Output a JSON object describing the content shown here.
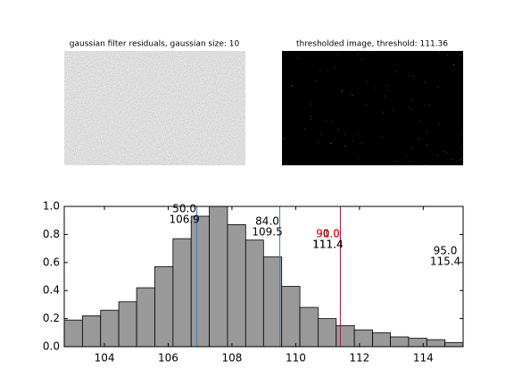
{
  "images": [
    {
      "title": "gaussian filter residuals, gaussian size: 10"
    },
    {
      "title": "thresholded image, threshold: 111.36"
    }
  ],
  "chart_data": {
    "type": "histogram",
    "bins": [
      102.74,
      103.31,
      103.88,
      104.45,
      105.01,
      105.58,
      106.15,
      106.72,
      107.29,
      107.86,
      108.43,
      108.99,
      109.56,
      110.13,
      110.7,
      111.27,
      111.84,
      112.41,
      112.97,
      113.54,
      114.11,
      114.68,
      115.25
    ],
    "values": [
      0.19,
      0.22,
      0.26,
      0.32,
      0.42,
      0.57,
      0.77,
      0.93,
      1.0,
      0.87,
      0.76,
      0.64,
      0.43,
      0.28,
      0.2,
      0.15,
      0.12,
      0.1,
      0.07,
      0.06,
      0.05,
      0.03
    ],
    "color": "#999999",
    "xlim": [
      102.74,
      115.25
    ],
    "xticks": [
      104,
      106,
      108,
      110,
      112,
      114
    ],
    "ylim": [
      0,
      1
    ],
    "yticks": [
      {
        "value": 0,
        "label": "0.0"
      },
      {
        "value": 0.2,
        "label": "0.2"
      },
      {
        "value": 0.4,
        "label": "0.4"
      },
      {
        "value": 0.6,
        "label": "0.6"
      },
      {
        "value": 0.8,
        "label": "0.8"
      },
      {
        "value": 1,
        "label": "1.0"
      }
    ],
    "markers": [
      {
        "percentile": "50.0",
        "value": 106.9,
        "line_color": "#3a7fc0",
        "text_color": "#000000"
      },
      {
        "percentile": "84.0",
        "value": 109.5,
        "line_color": "#3a7fc0",
        "text_color": "#000000"
      },
      {
        "percentile": "90.0",
        "value": 111.4,
        "line_color": "#3a7fc0",
        "text_color": "#000000"
      },
      {
        "percentile": "91.0",
        "value": 111.4,
        "line_color": "#b0204a",
        "text_color": "#ff0000"
      },
      {
        "percentile": "95.0",
        "value": 115.4,
        "line_color": "#3a7fc0",
        "text_color": "#000000"
      }
    ]
  }
}
